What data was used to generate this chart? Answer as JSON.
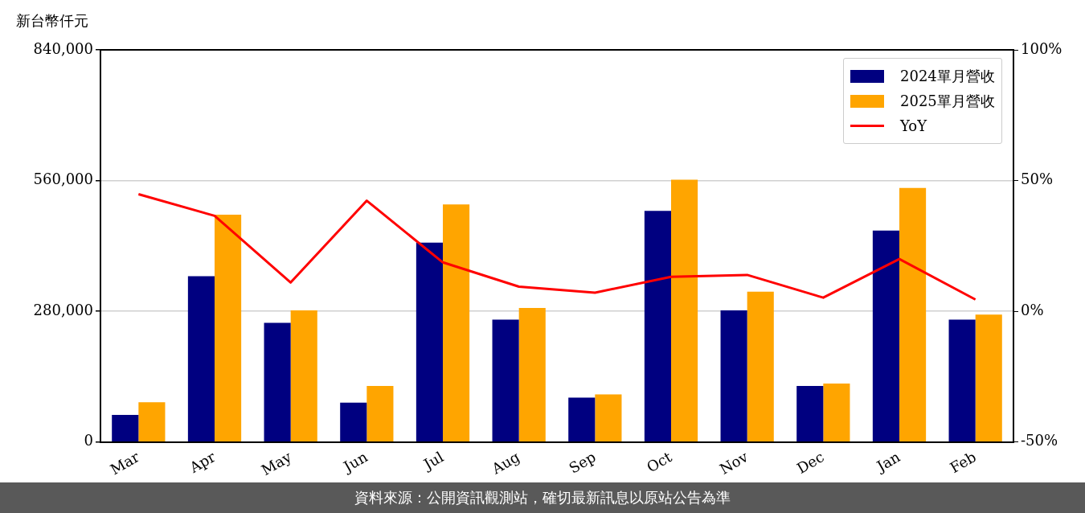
{
  "chart_data": {
    "type": "bar",
    "ylabel": "新台幣仟元",
    "categories": [
      "Mar",
      "Apr",
      "May",
      "Jun",
      "Jul",
      "Aug",
      "Sep",
      "Oct",
      "Nov",
      "Dec",
      "Jan",
      "Feb"
    ],
    "series": [
      {
        "name": "2024單月營收",
        "color": "#000080",
        "values": [
          58000,
          355000,
          255000,
          84000,
          427000,
          262000,
          95000,
          495000,
          282000,
          120000,
          453000,
          262000
        ]
      },
      {
        "name": "2025單月營收",
        "color": "#ffa500",
        "values": [
          85000,
          487000,
          282000,
          120000,
          509000,
          287000,
          102000,
          562000,
          322000,
          125000,
          544000,
          273000
        ]
      },
      {
        "name": "YoY",
        "type": "line",
        "axis": "y2",
        "color": "#ff0000",
        "values": [
          44.8,
          36.5,
          11,
          42.3,
          18.7,
          9.4,
          7.1,
          13.2,
          13.9,
          5.2,
          20,
          4.5
        ]
      }
    ],
    "ylim": [
      0,
      840000
    ],
    "yticks": [
      {
        "value": 0,
        "label": "0"
      },
      {
        "value": 280000,
        "label": "280,000"
      },
      {
        "value": 560000,
        "label": "560,000"
      },
      {
        "value": 840000,
        "label": "840,000"
      }
    ],
    "y2lim": [
      -50,
      100
    ],
    "y2ticks": [
      {
        "value": -50,
        "label": "-50%"
      },
      {
        "value": 0,
        "label": "0%"
      },
      {
        "value": 50,
        "label": "50%"
      },
      {
        "value": 100,
        "label": "100%"
      }
    ],
    "grid": "y",
    "legend": "top right",
    "marker": "none",
    "line_style": "solid",
    "annotations": [
      "資料來源：公開資訊觀測站，確切最新訊息以原站公告為準"
    ]
  }
}
